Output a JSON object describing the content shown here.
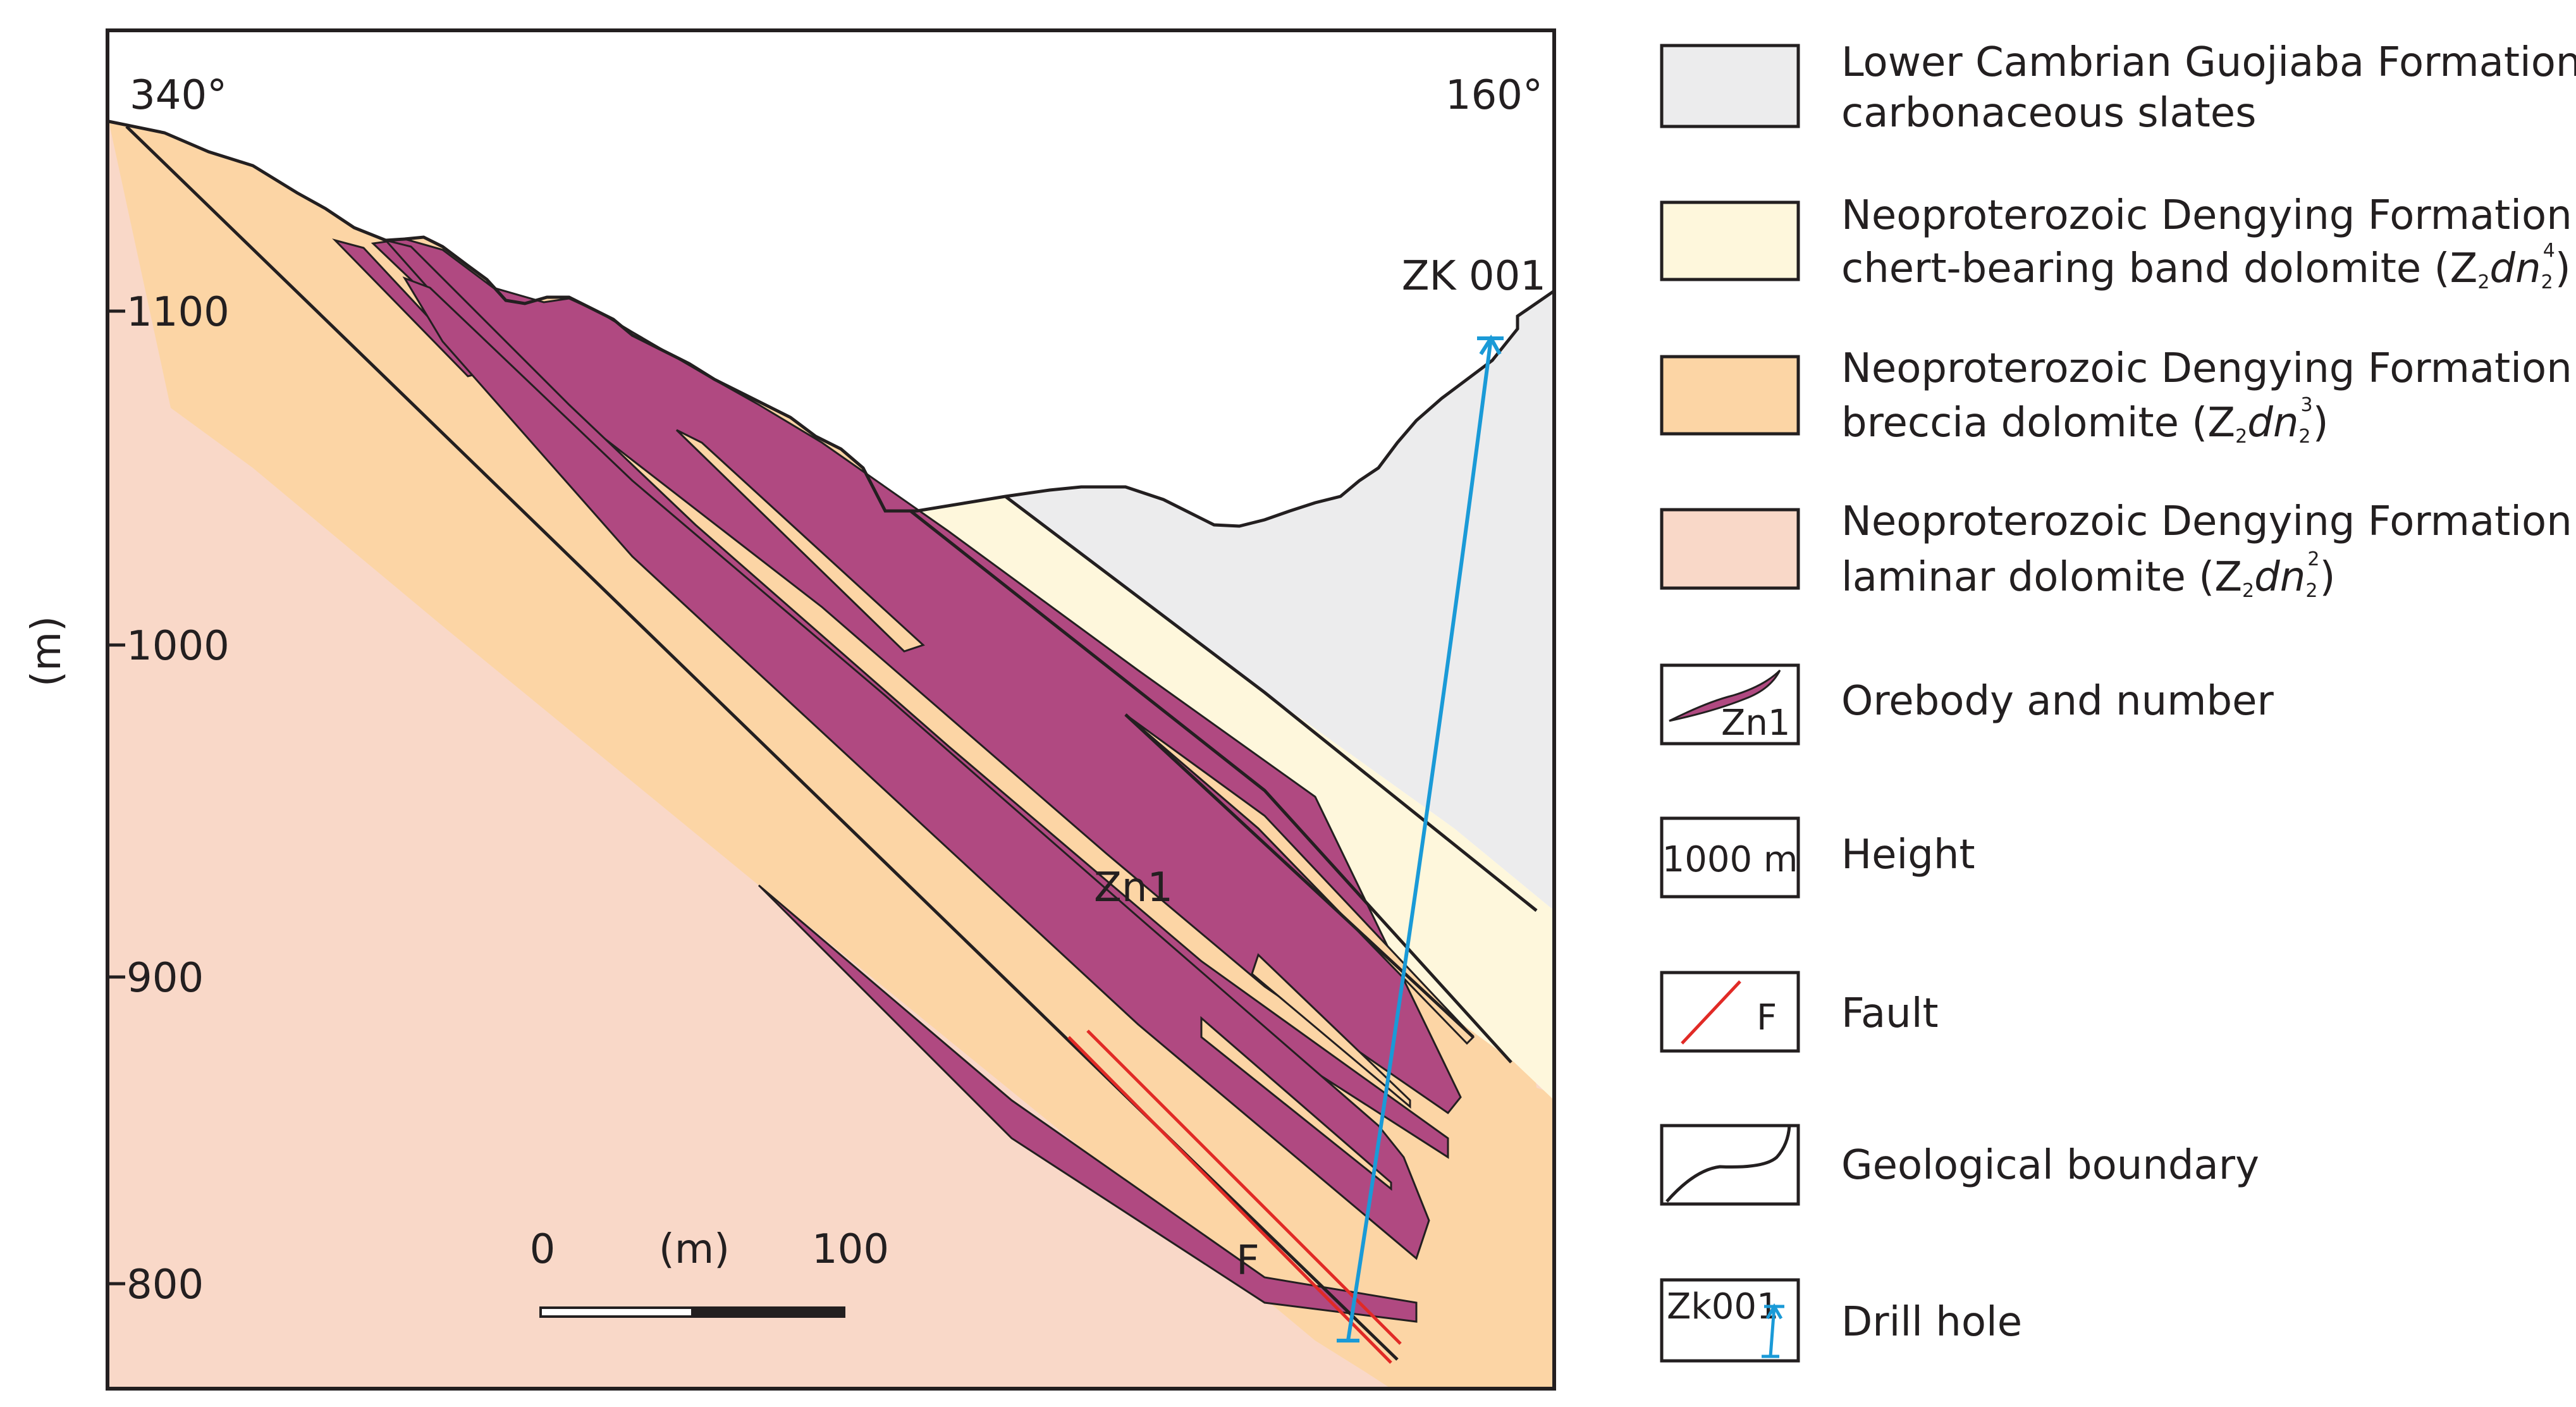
{
  "section": {
    "left_bearing": "340°",
    "right_bearing": "160°",
    "y_axis_label": "(m)",
    "y_ticks": [
      "1100",
      "1000",
      "900",
      "800"
    ],
    "drill_hole_label": "ZK 001",
    "orebody_label": "Zn1",
    "fault_label": "F",
    "scale_bar": {
      "start": "0",
      "unit": "(m)",
      "end": "100"
    }
  },
  "legend": {
    "items": [
      {
        "line1": "Lower Cambrian Guojiaba Formation",
        "line2": "carbonaceous slates",
        "color": "#ececed"
      },
      {
        "line1": "Neoproterozoic Dengying Formation",
        "line2": "chert-bearing band dolomite (",
        "formula": {
          "base": "Z",
          "sub1": "2",
          "italic": "dn",
          "sub2": "2",
          "sup": "4"
        },
        "tail": ")",
        "color": "#fef7dc"
      },
      {
        "line1": "Neoproterozoic Dengying Formation",
        "line2": "breccia dolomite (",
        "formula": {
          "base": "Z",
          "sub1": "2",
          "italic": "dn",
          "sub2": "2",
          "sup": "3"
        },
        "tail": ")",
        "color": "#fcd5a5"
      },
      {
        "line1": "Neoproterozoic Dengying Formation",
        "line2": "laminar dolomite (",
        "formula": {
          "base": "Z",
          "sub1": "2",
          "italic": "dn",
          "sub2": "2",
          "sup": "2"
        },
        "tail": ")",
        "color": "#f9d8c8"
      }
    ],
    "symbols": [
      {
        "label": "Orebody and number",
        "icon_text": "Zn1",
        "color": "#b04981"
      },
      {
        "label": "Height",
        "icon_text": "1000 m"
      },
      {
        "label": "Fault",
        "icon_text": "F",
        "color": "#e12a26"
      },
      {
        "label": "Geological boundary"
      },
      {
        "label": "Drill hole",
        "icon_text": "Zk001",
        "color": "#1a9ad7"
      }
    ]
  }
}
